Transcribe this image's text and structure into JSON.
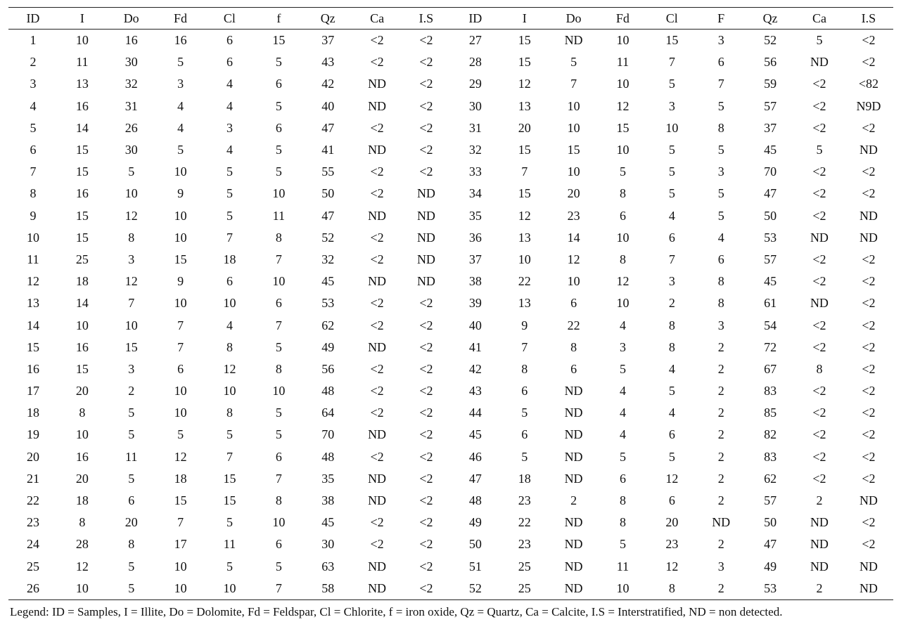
{
  "table": {
    "headers": [
      "ID",
      "I",
      "Do",
      "Fd",
      "Cl",
      "f",
      "Qz",
      "Ca",
      "I.S",
      "ID",
      "I",
      "Do",
      "Fd",
      "Cl",
      "F",
      "Qz",
      "Ca",
      "I.S"
    ],
    "rows": [
      [
        "1",
        "10",
        "16",
        "16",
        "6",
        "15",
        "37",
        "<2",
        "<2",
        "27",
        "15",
        "ND",
        "10",
        "15",
        "3",
        "52",
        "5",
        "<2"
      ],
      [
        "2",
        "11",
        "30",
        "5",
        "6",
        "5",
        "43",
        "<2",
        "<2",
        "28",
        "15",
        "5",
        "11",
        "7",
        "6",
        "56",
        "ND",
        "<2"
      ],
      [
        "3",
        "13",
        "32",
        "3",
        "4",
        "6",
        "42",
        "ND",
        "<2",
        "29",
        "12",
        "7",
        "10",
        "5",
        "7",
        "59",
        "<2",
        "<82"
      ],
      [
        "4",
        "16",
        "31",
        "4",
        "4",
        "5",
        "40",
        "ND",
        "<2",
        "30",
        "13",
        "10",
        "12",
        "3",
        "5",
        "57",
        "<2",
        "N9D"
      ],
      [
        "5",
        "14",
        "26",
        "4",
        "3",
        "6",
        "47",
        "<2",
        "<2",
        "31",
        "20",
        "10",
        "15",
        "10",
        "8",
        "37",
        "<2",
        "<2"
      ],
      [
        "6",
        "15",
        "30",
        "5",
        "4",
        "5",
        "41",
        "ND",
        "<2",
        "32",
        "15",
        "15",
        "10",
        "5",
        "5",
        "45",
        "5",
        "ND"
      ],
      [
        "7",
        "15",
        "5",
        "10",
        "5",
        "5",
        "55",
        "<2",
        "<2",
        "33",
        "7",
        "10",
        "5",
        "5",
        "3",
        "70",
        "<2",
        "<2"
      ],
      [
        "8",
        "16",
        "10",
        "9",
        "5",
        "10",
        "50",
        "<2",
        "ND",
        "34",
        "15",
        "20",
        "8",
        "5",
        "5",
        "47",
        "<2",
        "<2"
      ],
      [
        "9",
        "15",
        "12",
        "10",
        "5",
        "11",
        "47",
        "ND",
        "ND",
        "35",
        "12",
        "23",
        "6",
        "4",
        "5",
        "50",
        "<2",
        "ND"
      ],
      [
        "10",
        "15",
        "8",
        "10",
        "7",
        "8",
        "52",
        "<2",
        "ND",
        "36",
        "13",
        "14",
        "10",
        "6",
        "4",
        "53",
        "ND",
        "ND"
      ],
      [
        "11",
        "25",
        "3",
        "15",
        "18",
        "7",
        "32",
        "<2",
        "ND",
        "37",
        "10",
        "12",
        "8",
        "7",
        "6",
        "57",
        "<2",
        "<2"
      ],
      [
        "12",
        "18",
        "12",
        "9",
        "6",
        "10",
        "45",
        "ND",
        "ND",
        "38",
        "22",
        "10",
        "12",
        "3",
        "8",
        "45",
        "<2",
        "<2"
      ],
      [
        "13",
        "14",
        "7",
        "10",
        "10",
        "6",
        "53",
        "<2",
        "<2",
        "39",
        "13",
        "6",
        "10",
        "2",
        "8",
        "61",
        "ND",
        "<2"
      ],
      [
        "14",
        "10",
        "10",
        "7",
        "4",
        "7",
        "62",
        "<2",
        "<2",
        "40",
        "9",
        "22",
        "4",
        "8",
        "3",
        "54",
        "<2",
        "<2"
      ],
      [
        "15",
        "16",
        "15",
        "7",
        "8",
        "5",
        "49",
        "ND",
        "<2",
        "41",
        "7",
        "8",
        "3",
        "8",
        "2",
        "72",
        "<2",
        "<2"
      ],
      [
        "16",
        "15",
        "3",
        "6",
        "12",
        "8",
        "56",
        "<2",
        "<2",
        "42",
        "8",
        "6",
        "5",
        "4",
        "2",
        "67",
        "8",
        "<2"
      ],
      [
        "17",
        "20",
        "2",
        "10",
        "10",
        "10",
        "48",
        "<2",
        "<2",
        "43",
        "6",
        "ND",
        "4",
        "5",
        "2",
        "83",
        "<2",
        "<2"
      ],
      [
        "18",
        "8",
        "5",
        "10",
        "8",
        "5",
        "64",
        "<2",
        "<2",
        "44",
        "5",
        "ND",
        "4",
        "4",
        "2",
        "85",
        "<2",
        "<2"
      ],
      [
        "19",
        "10",
        "5",
        "5",
        "5",
        "5",
        "70",
        "ND",
        "<2",
        "45",
        "6",
        "ND",
        "4",
        "6",
        "2",
        "82",
        "<2",
        "<2"
      ],
      [
        "20",
        "16",
        "11",
        "12",
        "7",
        "6",
        "48",
        "<2",
        "<2",
        "46",
        "5",
        "ND",
        "5",
        "5",
        "2",
        "83",
        "<2",
        "<2"
      ],
      [
        "21",
        "20",
        "5",
        "18",
        "15",
        "7",
        "35",
        "ND",
        "<2",
        "47",
        "18",
        "ND",
        "6",
        "12",
        "2",
        "62",
        "<2",
        "<2"
      ],
      [
        "22",
        "18",
        "6",
        "15",
        "15",
        "8",
        "38",
        "ND",
        "<2",
        "48",
        "23",
        "2",
        "8",
        "6",
        "2",
        "57",
        "2",
        "ND"
      ],
      [
        "23",
        "8",
        "20",
        "7",
        "5",
        "10",
        "45",
        "<2",
        "<2",
        "49",
        "22",
        "ND",
        "8",
        "20",
        "ND",
        "50",
        "ND",
        "<2"
      ],
      [
        "24",
        "28",
        "8",
        "17",
        "11",
        "6",
        "30",
        "<2",
        "<2",
        "50",
        "23",
        "ND",
        "5",
        "23",
        "2",
        "47",
        "ND",
        "<2"
      ],
      [
        "25",
        "12",
        "5",
        "10",
        "5",
        "5",
        "63",
        "ND",
        "<2",
        "51",
        "25",
        "ND",
        "11",
        "12",
        "3",
        "49",
        "ND",
        "ND"
      ],
      [
        "26",
        "10",
        "5",
        "10",
        "10",
        "7",
        "58",
        "ND",
        "<2",
        "52",
        "25",
        "ND",
        "10",
        "8",
        "2",
        "53",
        "2",
        "ND"
      ]
    ]
  },
  "legend": "Legend: ID = Samples, I = Illite, Do = Dolomite, Fd = Feldspar, Cl = Chlorite, f = iron oxide, Qz = Quartz, Ca = Calcite, I.S = Interstratified, ND = non detected."
}
